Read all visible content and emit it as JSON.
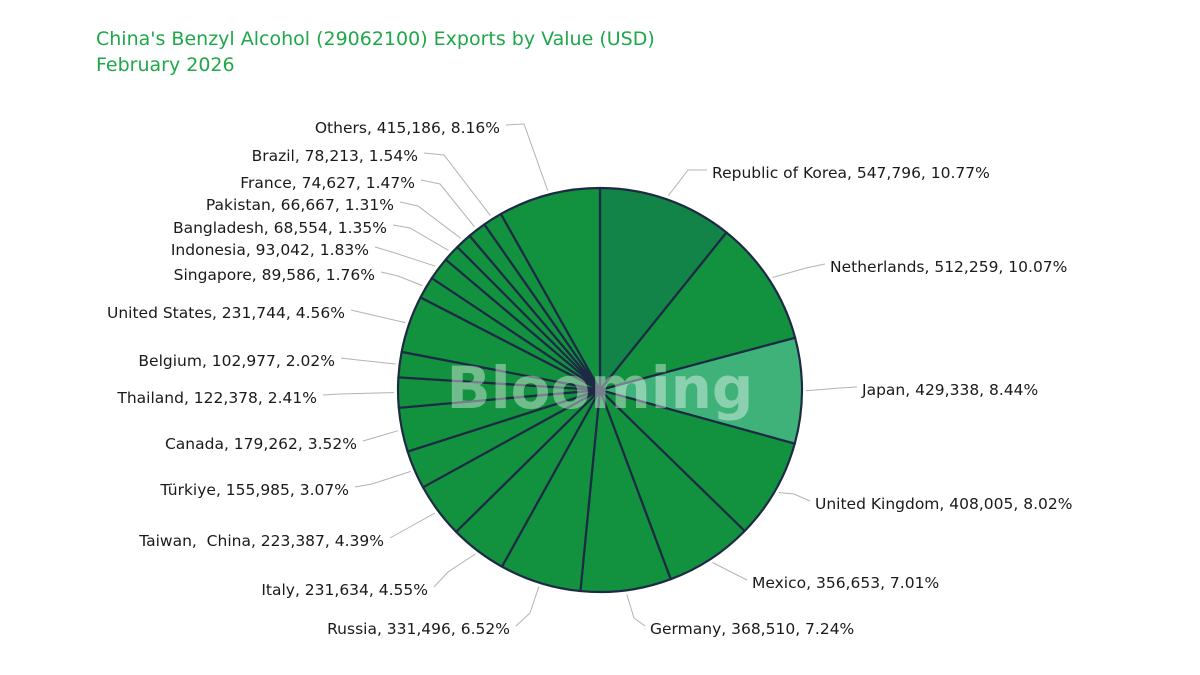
{
  "watermark": "Blooming",
  "colors": {
    "title": "#1fa84a",
    "slice_default": "#12913f",
    "slice_first": "#138447",
    "slice_highlight": "#3fb27a",
    "slice_border": "#1d2a44",
    "leader": "#b3b3b3"
  },
  "chart_data": {
    "type": "pie",
    "title": "China's Benzyl Alcohol (29062100) Exports by Value (USD)",
    "subtitle": "February 2026",
    "legend": "none",
    "start_angle_deg": 0,
    "direction": "clockwise",
    "slices": [
      {
        "label": "Republic of Korea",
        "value": "547,796",
        "percent": "10.77%",
        "pct": 10.77
      },
      {
        "label": "Netherlands",
        "value": "512,259",
        "percent": "10.07%",
        "pct": 10.07
      },
      {
        "label": "Japan",
        "value": "429,338",
        "percent": "8.44%",
        "pct": 8.44
      },
      {
        "label": "United Kingdom",
        "value": "408,005",
        "percent": "8.02%",
        "pct": 8.02
      },
      {
        "label": "Mexico",
        "value": "356,653",
        "percent": "7.01%",
        "pct": 7.01
      },
      {
        "label": "Germany",
        "value": "368,510",
        "percent": "7.24%",
        "pct": 7.24
      },
      {
        "label": "Russia",
        "value": "331,496",
        "percent": "6.52%",
        "pct": 6.52
      },
      {
        "label": "Italy",
        "value": "231,634",
        "percent": "4.55%",
        "pct": 4.55
      },
      {
        "label": "Taiwan,  China",
        "value": "223,387",
        "percent": "4.39%",
        "pct": 4.39
      },
      {
        "label": "Türkiye",
        "value": "155,985",
        "percent": "3.07%",
        "pct": 3.07
      },
      {
        "label": "Canada",
        "value": "179,262",
        "percent": "3.52%",
        "pct": 3.52
      },
      {
        "label": "Thailand",
        "value": "122,378",
        "percent": "2.41%",
        "pct": 2.41
      },
      {
        "label": "Belgium",
        "value": "102,977",
        "percent": "2.02%",
        "pct": 2.02
      },
      {
        "label": "United States",
        "value": "231,744",
        "percent": "4.56%",
        "pct": 4.56
      },
      {
        "label": "Singapore",
        "value": "89,586",
        "percent": "1.76%",
        "pct": 1.76
      },
      {
        "label": "Indonesia",
        "value": "93,042",
        "percent": "1.83%",
        "pct": 1.83
      },
      {
        "label": "Bangladesh",
        "value": "68,554",
        "percent": "1.35%",
        "pct": 1.35
      },
      {
        "label": "Pakistan",
        "value": "66,667",
        "percent": "1.31%",
        "pct": 1.31
      },
      {
        "label": "France",
        "value": "74,627",
        "percent": "1.47%",
        "pct": 1.47
      },
      {
        "label": "Brazil",
        "value": "78,213",
        "percent": "1.54%",
        "pct": 1.54
      },
      {
        "label": "Others",
        "value": "415,186",
        "percent": "8.16%",
        "pct": 8.16
      }
    ]
  }
}
